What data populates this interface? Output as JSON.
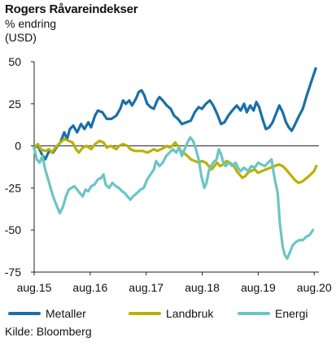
{
  "title": "Rogers Råvareindekser",
  "subtitle_line1": "% endring",
  "subtitle_line2": "(USD)",
  "source": "Kilde: Bloomberg",
  "chart_data": {
    "type": "line",
    "title": "Rogers Råvareindekser",
    "ylabel": "% endring (USD)",
    "xlabel": "",
    "ylim": [
      -75,
      50
    ],
    "yticks": [
      50,
      25,
      0,
      -25,
      -50,
      -75
    ],
    "xlim": [
      2015.583,
      2020.667
    ],
    "xticks": [
      {
        "x": 2015.583,
        "label": "aug.15"
      },
      {
        "x": 2016.583,
        "label": "aug.16"
      },
      {
        "x": 2017.583,
        "label": "aug.17"
      },
      {
        "x": 2018.583,
        "label": "aug.18"
      },
      {
        "x": 2019.583,
        "label": "aug.19"
      },
      {
        "x": 2020.583,
        "label": "aug.20"
      }
    ],
    "zero_line": true,
    "grid": false,
    "legend_position": "bottom",
    "series": [
      {
        "name": "Metaller",
        "color": "#1a6fa8",
        "points": [
          [
            2015.58,
            -1
          ],
          [
            2015.65,
            0
          ],
          [
            2015.72,
            -5
          ],
          [
            2015.78,
            -8
          ],
          [
            2015.85,
            -3
          ],
          [
            2015.92,
            -4
          ],
          [
            2016.0,
            0
          ],
          [
            2016.05,
            2
          ],
          [
            2016.12,
            8
          ],
          [
            2016.17,
            4
          ],
          [
            2016.22,
            10
          ],
          [
            2016.28,
            12
          ],
          [
            2016.35,
            8
          ],
          [
            2016.42,
            13
          ],
          [
            2016.48,
            10
          ],
          [
            2016.55,
            14
          ],
          [
            2016.6,
            11
          ],
          [
            2016.67,
            18
          ],
          [
            2016.72,
            21
          ],
          [
            2016.8,
            20
          ],
          [
            2016.88,
            16
          ],
          [
            2016.96,
            16
          ],
          [
            2017.05,
            18
          ],
          [
            2017.12,
            22
          ],
          [
            2017.17,
            27
          ],
          [
            2017.22,
            25
          ],
          [
            2017.28,
            27
          ],
          [
            2017.33,
            24
          ],
          [
            2017.4,
            28
          ],
          [
            2017.45,
            32
          ],
          [
            2017.5,
            33
          ],
          [
            2017.55,
            30
          ],
          [
            2017.6,
            25
          ],
          [
            2017.66,
            23
          ],
          [
            2017.72,
            22
          ],
          [
            2017.78,
            27
          ],
          [
            2017.82,
            29
          ],
          [
            2017.88,
            27
          ],
          [
            2017.95,
            24
          ],
          [
            2018.02,
            22
          ],
          [
            2018.08,
            18
          ],
          [
            2018.15,
            16
          ],
          [
            2018.22,
            13
          ],
          [
            2018.3,
            14
          ],
          [
            2018.38,
            15
          ],
          [
            2018.45,
            20
          ],
          [
            2018.52,
            23
          ],
          [
            2018.58,
            22
          ],
          [
            2018.65,
            25
          ],
          [
            2018.72,
            27
          ],
          [
            2018.78,
            24
          ],
          [
            2018.85,
            19
          ],
          [
            2018.92,
            13
          ],
          [
            2018.98,
            14
          ],
          [
            2019.05,
            18
          ],
          [
            2019.12,
            21
          ],
          [
            2019.2,
            24
          ],
          [
            2019.27,
            21
          ],
          [
            2019.33,
            25
          ],
          [
            2019.38,
            20
          ],
          [
            2019.44,
            24
          ],
          [
            2019.5,
            21
          ],
          [
            2019.55,
            26
          ],
          [
            2019.6,
            23
          ],
          [
            2019.66,
            16
          ],
          [
            2019.72,
            10
          ],
          [
            2019.78,
            11
          ],
          [
            2019.84,
            14
          ],
          [
            2019.9,
            19
          ],
          [
            2019.96,
            24
          ],
          [
            2020.02,
            20
          ],
          [
            2020.08,
            14
          ],
          [
            2020.13,
            11
          ],
          [
            2020.18,
            9
          ],
          [
            2020.23,
            12
          ],
          [
            2020.3,
            17
          ],
          [
            2020.38,
            22
          ],
          [
            2020.45,
            30
          ],
          [
            2020.5,
            35
          ],
          [
            2020.55,
            40
          ],
          [
            2020.61,
            46
          ]
        ]
      },
      {
        "name": "Landbruk",
        "color": "#b9b100",
        "points": [
          [
            2015.58,
            -1
          ],
          [
            2015.65,
            1
          ],
          [
            2015.7,
            -2
          ],
          [
            2015.78,
            -3
          ],
          [
            2015.85,
            -2
          ],
          [
            2015.9,
            -4
          ],
          [
            2015.96,
            -1
          ],
          [
            2016.05,
            2
          ],
          [
            2016.12,
            4
          ],
          [
            2016.2,
            3
          ],
          [
            2016.27,
            2
          ],
          [
            2016.33,
            -2
          ],
          [
            2016.38,
            -4
          ],
          [
            2016.45,
            -1
          ],
          [
            2016.52,
            0
          ],
          [
            2016.6,
            -2
          ],
          [
            2016.67,
            1
          ],
          [
            2016.75,
            3
          ],
          [
            2016.82,
            2
          ],
          [
            2016.88,
            -1
          ],
          [
            2016.95,
            0
          ],
          [
            2017.0,
            -1
          ],
          [
            2017.05,
            -2
          ],
          [
            2017.1,
            0
          ],
          [
            2017.17,
            1
          ],
          [
            2017.25,
            0
          ],
          [
            2017.3,
            -2
          ],
          [
            2017.38,
            -3
          ],
          [
            2017.45,
            -3
          ],
          [
            2017.52,
            -3
          ],
          [
            2017.6,
            -4
          ],
          [
            2017.67,
            -3
          ],
          [
            2017.72,
            -2
          ],
          [
            2017.78,
            -3
          ],
          [
            2017.85,
            -2
          ],
          [
            2017.9,
            -1
          ],
          [
            2017.95,
            0
          ],
          [
            2018.0,
            -1
          ],
          [
            2018.05,
            0
          ],
          [
            2018.1,
            2
          ],
          [
            2018.15,
            0
          ],
          [
            2018.2,
            -3
          ],
          [
            2018.25,
            -4
          ],
          [
            2018.32,
            -6
          ],
          [
            2018.38,
            -8
          ],
          [
            2018.45,
            -9
          ],
          [
            2018.52,
            -10
          ],
          [
            2018.58,
            -9
          ],
          [
            2018.65,
            -10
          ],
          [
            2018.7,
            -12
          ],
          [
            2018.75,
            -14
          ],
          [
            2018.8,
            -12
          ],
          [
            2018.85,
            -10
          ],
          [
            2018.9,
            -12
          ],
          [
            2018.96,
            -11
          ],
          [
            2019.02,
            -9
          ],
          [
            2019.08,
            -10
          ],
          [
            2019.15,
            -12
          ],
          [
            2019.2,
            -15
          ],
          [
            2019.25,
            -17
          ],
          [
            2019.3,
            -19
          ],
          [
            2019.35,
            -18
          ],
          [
            2019.4,
            -16
          ],
          [
            2019.45,
            -15
          ],
          [
            2019.52,
            -14
          ],
          [
            2019.58,
            -16
          ],
          [
            2019.65,
            -15
          ],
          [
            2019.72,
            -14
          ],
          [
            2019.8,
            -13
          ],
          [
            2019.88,
            -12
          ],
          [
            2019.95,
            -11
          ],
          [
            2020.02,
            -12
          ],
          [
            2020.08,
            -14
          ],
          [
            2020.13,
            -16
          ],
          [
            2020.18,
            -18
          ],
          [
            2020.23,
            -20
          ],
          [
            2020.3,
            -22
          ],
          [
            2020.38,
            -21
          ],
          [
            2020.45,
            -19
          ],
          [
            2020.52,
            -17
          ],
          [
            2020.58,
            -15
          ],
          [
            2020.62,
            -12
          ]
        ]
      },
      {
        "name": "Energi",
        "color": "#6cc5c5",
        "points": [
          [
            2015.58,
            -1
          ],
          [
            2015.63,
            -8
          ],
          [
            2015.68,
            -10
          ],
          [
            2015.73,
            -6
          ],
          [
            2015.78,
            -14
          ],
          [
            2015.85,
            -22
          ],
          [
            2015.92,
            -30
          ],
          [
            2015.98,
            -35
          ],
          [
            2016.04,
            -40
          ],
          [
            2016.1,
            -36
          ],
          [
            2016.15,
            -30
          ],
          [
            2016.2,
            -26
          ],
          [
            2016.25,
            -25
          ],
          [
            2016.3,
            -24
          ],
          [
            2016.35,
            -26
          ],
          [
            2016.4,
            -28
          ],
          [
            2016.45,
            -30
          ],
          [
            2016.5,
            -26
          ],
          [
            2016.55,
            -27
          ],
          [
            2016.6,
            -24
          ],
          [
            2016.66,
            -23
          ],
          [
            2016.72,
            -20
          ],
          [
            2016.78,
            -19
          ],
          [
            2016.82,
            -17
          ],
          [
            2016.86,
            -23
          ],
          [
            2016.92,
            -25
          ],
          [
            2016.98,
            -22
          ],
          [
            2017.04,
            -24
          ],
          [
            2017.1,
            -25
          ],
          [
            2017.15,
            -27
          ],
          [
            2017.2,
            -28
          ],
          [
            2017.25,
            -30
          ],
          [
            2017.3,
            -32
          ],
          [
            2017.35,
            -30
          ],
          [
            2017.42,
            -28
          ],
          [
            2017.48,
            -26
          ],
          [
            2017.54,
            -25
          ],
          [
            2017.6,
            -20
          ],
          [
            2017.66,
            -17
          ],
          [
            2017.72,
            -14
          ],
          [
            2017.76,
            -9
          ],
          [
            2017.82,
            -12
          ],
          [
            2017.88,
            -10
          ],
          [
            2017.94,
            -6
          ],
          [
            2018.0,
            -4
          ],
          [
            2018.06,
            -2
          ],
          [
            2018.12,
            -4
          ],
          [
            2018.17,
            -1
          ],
          [
            2018.22,
            -6
          ],
          [
            2018.27,
            -2
          ],
          [
            2018.32,
            2
          ],
          [
            2018.37,
            5
          ],
          [
            2018.42,
            3
          ],
          [
            2018.47,
            -2
          ],
          [
            2018.52,
            -8
          ],
          [
            2018.57,
            -18
          ],
          [
            2018.62,
            -25
          ],
          [
            2018.66,
            -22
          ],
          [
            2018.7,
            -15
          ],
          [
            2018.74,
            -12
          ],
          [
            2018.78,
            -10
          ],
          [
            2018.84,
            -8
          ],
          [
            2018.88,
            -2
          ],
          [
            2018.92,
            -5
          ],
          [
            2018.96,
            -10
          ],
          [
            2019.0,
            -12
          ],
          [
            2019.06,
            -10
          ],
          [
            2019.12,
            -12
          ],
          [
            2019.18,
            -10
          ],
          [
            2019.22,
            -13
          ],
          [
            2019.27,
            -15
          ],
          [
            2019.33,
            -13
          ],
          [
            2019.4,
            -15
          ],
          [
            2019.46,
            -12
          ],
          [
            2019.52,
            -13
          ],
          [
            2019.58,
            -10
          ],
          [
            2019.64,
            -11
          ],
          [
            2019.7,
            -12
          ],
          [
            2019.76,
            -10
          ],
          [
            2019.82,
            -8
          ],
          [
            2019.88,
            -20
          ],
          [
            2019.93,
            -28
          ],
          [
            2019.97,
            -46
          ],
          [
            2020.02,
            -60
          ],
          [
            2020.06,
            -65
          ],
          [
            2020.1,
            -67
          ],
          [
            2020.14,
            -64
          ],
          [
            2020.2,
            -59
          ],
          [
            2020.26,
            -57
          ],
          [
            2020.32,
            -56
          ],
          [
            2020.38,
            -56
          ],
          [
            2020.44,
            -54
          ],
          [
            2020.5,
            -53
          ],
          [
            2020.56,
            -50
          ]
        ]
      }
    ]
  }
}
